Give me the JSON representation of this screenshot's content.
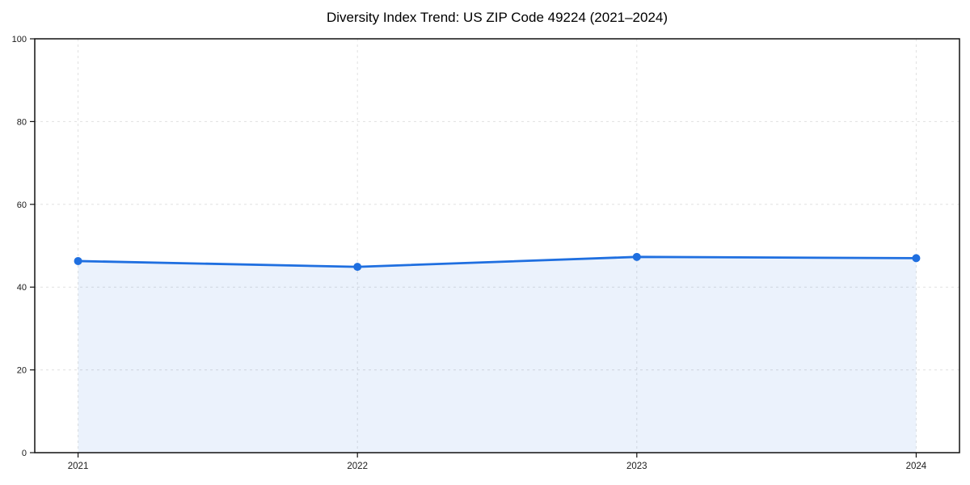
{
  "page": {
    "background": "#ffffff"
  },
  "chart_data": {
    "type": "line",
    "title": "Diversity Index Trend: US ZIP Code 49224 (2021–2024)",
    "series_name": "Diversity Index",
    "x": [
      2021,
      2022,
      2023,
      2024
    ],
    "values": [
      46.3,
      44.9,
      47.3,
      47.0
    ],
    "categories": [
      "2021",
      "2022",
      "2023",
      "2024"
    ],
    "xlabel": "",
    "ylabel": "",
    "xlim": [
      2020.845,
      2024.155
    ],
    "ylim": [
      0,
      100
    ],
    "yticks": [
      0,
      20,
      40,
      60,
      80,
      100
    ],
    "xticks": [
      2021,
      2022,
      2023,
      2024
    ],
    "grid": true,
    "grid_style": "dashed",
    "legend": false,
    "marker": "circle",
    "area_fill": true,
    "colors": {
      "line": "#1f6fe0",
      "marker": "#1f6fe0",
      "area": "rgba(31,111,224,0.09)",
      "grid": "#e0e0e0",
      "spine": "#111111",
      "text": "#1a1a1a",
      "title": "#000000"
    }
  }
}
